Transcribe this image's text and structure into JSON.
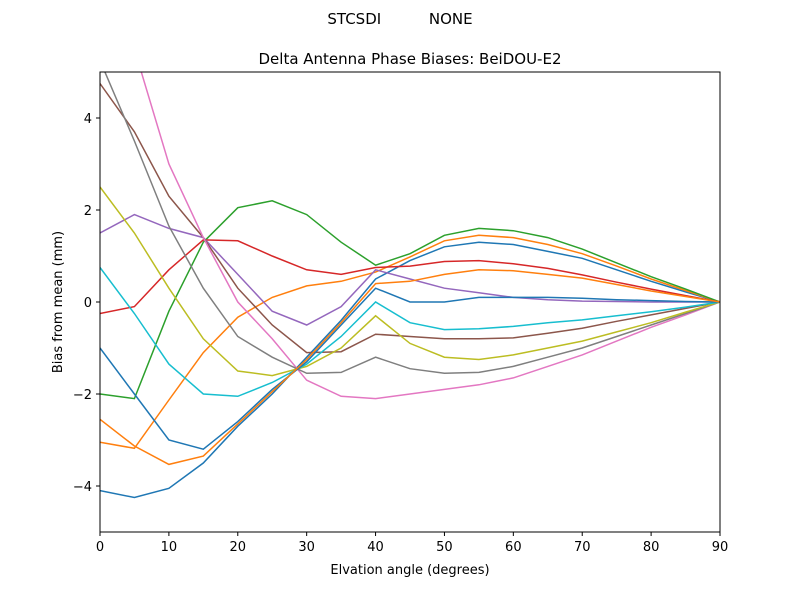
{
  "suptitle": "STCSDI          NONE",
  "chart_data": {
    "type": "line",
    "title": "Delta Antenna Phase Biases: BeiDOU-E2",
    "xlabel": "Elvation angle (degrees)",
    "ylabel": "Bias from mean (mm)",
    "xlim": [
      0,
      90
    ],
    "ylim": [
      -5,
      5
    ],
    "xticks": [
      0,
      10,
      20,
      30,
      40,
      50,
      60,
      70,
      80,
      90
    ],
    "yticks": [
      -4,
      -2,
      0,
      2,
      4
    ],
    "grid": false,
    "x": [
      0,
      5,
      10,
      15,
      20,
      25,
      30,
      35,
      40,
      45,
      50,
      55,
      60,
      65,
      70,
      75,
      80,
      85,
      90
    ],
    "colors": [
      "#1f77b4",
      "#ff7f0e",
      "#2ca02c",
      "#d62728",
      "#9467bd",
      "#8c564b",
      "#e377c2",
      "#7f7f7f",
      "#bcbd22",
      "#17becf"
    ],
    "series": [
      {
        "values": [
          -4.1,
          -4.25,
          -4.05,
          -3.5,
          -2.7,
          -2.0,
          -1.2,
          -0.4,
          0.5,
          0.9,
          1.2,
          1.3,
          1.25,
          1.1,
          0.95,
          0.7,
          0.45,
          0.22,
          0
        ]
      },
      {
        "values": [
          -3.05,
          -3.18,
          -2.13,
          -1.1,
          -0.33,
          0.1,
          0.35,
          0.45,
          0.65,
          0.98,
          1.33,
          1.45,
          1.4,
          1.25,
          1.05,
          0.78,
          0.5,
          0.25,
          0
        ]
      },
      {
        "values": [
          -2.0,
          -2.1,
          -0.2,
          1.3,
          2.05,
          2.2,
          1.9,
          1.3,
          0.8,
          1.05,
          1.45,
          1.6,
          1.55,
          1.4,
          1.15,
          0.85,
          0.55,
          0.28,
          0
        ]
      },
      {
        "values": [
          -0.25,
          -0.1,
          0.7,
          1.35,
          1.33,
          1.0,
          0.7,
          0.6,
          0.75,
          0.78,
          0.88,
          0.9,
          0.83,
          0.73,
          0.59,
          0.43,
          0.28,
          0.14,
          0
        ]
      },
      {
        "values": [
          1.5,
          1.9,
          1.6,
          1.4,
          0.6,
          -0.2,
          -0.5,
          -0.1,
          0.7,
          0.5,
          0.3,
          0.2,
          0.1,
          0.05,
          0.02,
          0.01,
          0,
          0,
          0
        ]
      },
      {
        "values": [
          4.75,
          3.7,
          2.3,
          1.4,
          0.3,
          -0.5,
          -1.1,
          -1.08,
          -0.7,
          -0.75,
          -0.8,
          -0.8,
          -0.78,
          -0.68,
          -0.57,
          -0.42,
          -0.28,
          -0.14,
          0
        ]
      },
      {
        "values": [
          8,
          5.5,
          3.0,
          1.4,
          0.0,
          -0.8,
          -1.7,
          -2.05,
          -2.1,
          -2.0,
          -1.9,
          -1.8,
          -1.65,
          -1.4,
          -1.15,
          -0.85,
          -0.55,
          -0.28,
          0
        ]
      },
      {
        "values": [
          5.25,
          3.5,
          1.65,
          0.3,
          -0.75,
          -1.2,
          -1.55,
          -1.53,
          -1.2,
          -1.45,
          -1.55,
          -1.53,
          -1.4,
          -1.2,
          -1.0,
          -0.75,
          -0.5,
          -0.25,
          0
        ]
      },
      {
        "values": [
          2.5,
          1.5,
          0.3,
          -0.8,
          -1.5,
          -1.6,
          -1.4,
          -1.0,
          -0.3,
          -0.9,
          -1.2,
          -1.25,
          -1.15,
          -1.0,
          -0.85,
          -0.65,
          -0.45,
          -0.22,
          0
        ]
      },
      {
        "values": [
          0.75,
          -0.25,
          -1.35,
          -2.0,
          -2.05,
          -1.75,
          -1.35,
          -0.75,
          0,
          -0.45,
          -0.6,
          -0.58,
          -0.53,
          -0.45,
          -0.39,
          -0.3,
          -0.21,
          -0.11,
          0
        ]
      },
      {
        "values": [
          -1.0,
          -2.0,
          -3.0,
          -3.2,
          -2.6,
          -1.9,
          -1.3,
          -0.5,
          0.3,
          0.0,
          0.0,
          0.1,
          0.1,
          0.1,
          0.08,
          0.05,
          0.03,
          0.01,
          0
        ]
      },
      {
        "values": [
          -2.55,
          -3.13,
          -3.53,
          -3.35,
          -2.65,
          -1.95,
          -1.25,
          -0.45,
          0.4,
          0.45,
          0.6,
          0.7,
          0.68,
          0.6,
          0.52,
          0.38,
          0.24,
          0.12,
          0
        ]
      }
    ]
  }
}
